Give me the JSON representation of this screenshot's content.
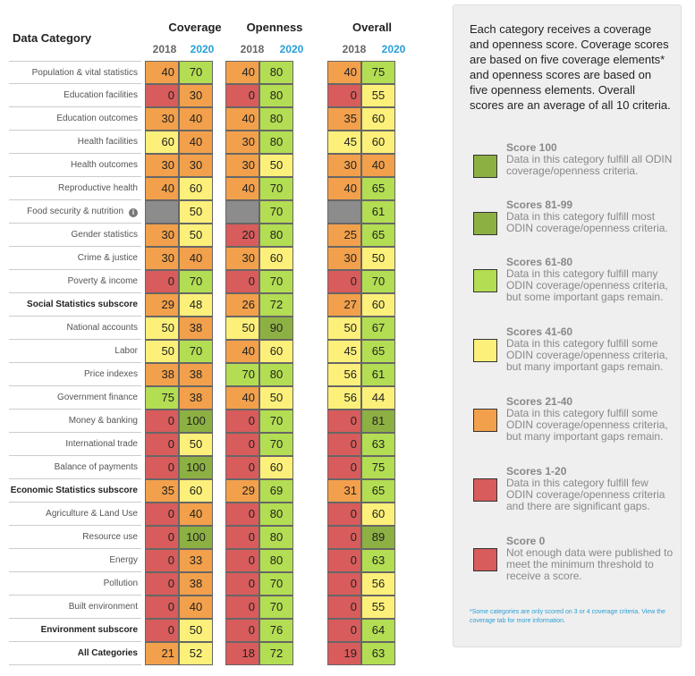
{
  "title": "Data Category",
  "groups": [
    {
      "title": "Coverage",
      "year_a": "2018",
      "year_b": "2020"
    },
    {
      "title": "Openness",
      "year_a": "2018",
      "year_b": "2020"
    },
    {
      "title": "Overall",
      "year_a": "2018",
      "year_b": "2020"
    }
  ],
  "colors": {
    "gray": "#8c8c8c",
    "red": "#d85c5c",
    "orange": "#f2a04b",
    "yellow": "#fdf07a",
    "lightgreen": "#b3dd52",
    "darkgreen": "#8db043"
  },
  "rows": [
    {
      "name": "Population & vital statistics",
      "bold": false,
      "values": [
        "40",
        "70",
        "40",
        "80",
        "40",
        "75"
      ],
      "colors": [
        "orange",
        "lightgreen",
        "orange",
        "lightgreen",
        "orange",
        "lightgreen"
      ]
    },
    {
      "name": "Education facilities",
      "bold": false,
      "values": [
        "0",
        "30",
        "0",
        "80",
        "0",
        "55"
      ],
      "colors": [
        "red",
        "orange",
        "red",
        "lightgreen",
        "red",
        "yellow"
      ]
    },
    {
      "name": "Education outcomes",
      "bold": false,
      "values": [
        "30",
        "40",
        "40",
        "80",
        "35",
        "60"
      ],
      "colors": [
        "orange",
        "orange",
        "orange",
        "lightgreen",
        "orange",
        "yellow"
      ]
    },
    {
      "name": "Health facilities",
      "bold": false,
      "values": [
        "60",
        "40",
        "30",
        "80",
        "45",
        "60"
      ],
      "colors": [
        "yellow",
        "orange",
        "orange",
        "lightgreen",
        "yellow",
        "yellow"
      ]
    },
    {
      "name": "Health outcomes",
      "bold": false,
      "values": [
        "30",
        "30",
        "30",
        "50",
        "30",
        "40"
      ],
      "colors": [
        "orange",
        "orange",
        "orange",
        "yellow",
        "orange",
        "orange"
      ]
    },
    {
      "name": "Reproductive health",
      "bold": false,
      "values": [
        "40",
        "60",
        "40",
        "70",
        "40",
        "65"
      ],
      "colors": [
        "orange",
        "yellow",
        "orange",
        "lightgreen",
        "orange",
        "lightgreen"
      ]
    },
    {
      "name": "Food security & nutrition",
      "bold": false,
      "info": "i",
      "values": [
        "",
        "50",
        "",
        "70",
        "",
        "61"
      ],
      "colors": [
        "gray",
        "yellow",
        "gray",
        "lightgreen",
        "gray",
        "lightgreen"
      ]
    },
    {
      "name": "Gender statistics",
      "bold": false,
      "values": [
        "30",
        "50",
        "20",
        "80",
        "25",
        "65"
      ],
      "colors": [
        "orange",
        "yellow",
        "red",
        "lightgreen",
        "orange",
        "lightgreen"
      ]
    },
    {
      "name": "Crime & justice",
      "bold": false,
      "values": [
        "30",
        "40",
        "30",
        "60",
        "30",
        "50"
      ],
      "colors": [
        "orange",
        "orange",
        "orange",
        "yellow",
        "orange",
        "yellow"
      ]
    },
    {
      "name": "Poverty & income",
      "bold": false,
      "values": [
        "0",
        "70",
        "0",
        "70",
        "0",
        "70"
      ],
      "colors": [
        "red",
        "lightgreen",
        "red",
        "lightgreen",
        "red",
        "lightgreen"
      ]
    },
    {
      "name": "Social Statistics subscore",
      "bold": true,
      "values": [
        "29",
        "48",
        "26",
        "72",
        "27",
        "60"
      ],
      "colors": [
        "orange",
        "yellow",
        "orange",
        "lightgreen",
        "orange",
        "yellow"
      ]
    },
    {
      "name": "National accounts",
      "bold": false,
      "values": [
        "50",
        "38",
        "50",
        "90",
        "50",
        "67"
      ],
      "colors": [
        "yellow",
        "orange",
        "yellow",
        "darkgreen",
        "yellow",
        "lightgreen"
      ]
    },
    {
      "name": "Labor",
      "bold": false,
      "values": [
        "50",
        "70",
        "40",
        "60",
        "45",
        "65"
      ],
      "colors": [
        "yellow",
        "lightgreen",
        "orange",
        "yellow",
        "yellow",
        "lightgreen"
      ]
    },
    {
      "name": "Price indexes",
      "bold": false,
      "values": [
        "38",
        "38",
        "70",
        "80",
        "56",
        "61"
      ],
      "colors": [
        "orange",
        "orange",
        "lightgreen",
        "lightgreen",
        "yellow",
        "lightgreen"
      ]
    },
    {
      "name": "Government finance",
      "bold": false,
      "values": [
        "75",
        "38",
        "40",
        "50",
        "56",
        "44"
      ],
      "colors": [
        "lightgreen",
        "orange",
        "orange",
        "yellow",
        "yellow",
        "yellow"
      ]
    },
    {
      "name": "Money & banking",
      "bold": false,
      "values": [
        "0",
        "100",
        "0",
        "70",
        "0",
        "81"
      ],
      "colors": [
        "red",
        "darkgreen",
        "red",
        "lightgreen",
        "red",
        "darkgreen"
      ]
    },
    {
      "name": "International trade",
      "bold": false,
      "values": [
        "0",
        "50",
        "0",
        "70",
        "0",
        "63"
      ],
      "colors": [
        "red",
        "yellow",
        "red",
        "lightgreen",
        "red",
        "lightgreen"
      ]
    },
    {
      "name": "Balance of payments",
      "bold": false,
      "values": [
        "0",
        "100",
        "0",
        "60",
        "0",
        "75"
      ],
      "colors": [
        "red",
        "darkgreen",
        "red",
        "yellow",
        "red",
        "lightgreen"
      ]
    },
    {
      "name": "Economic Statistics subscore",
      "bold": true,
      "values": [
        "35",
        "60",
        "29",
        "69",
        "31",
        "65"
      ],
      "colors": [
        "orange",
        "yellow",
        "orange",
        "lightgreen",
        "orange",
        "lightgreen"
      ]
    },
    {
      "name": "Agriculture & Land Use",
      "bold": false,
      "values": [
        "0",
        "40",
        "0",
        "80",
        "0",
        "60"
      ],
      "colors": [
        "red",
        "orange",
        "red",
        "lightgreen",
        "red",
        "yellow"
      ]
    },
    {
      "name": "Resource use",
      "bold": false,
      "values": [
        "0",
        "100",
        "0",
        "80",
        "0",
        "89"
      ],
      "colors": [
        "red",
        "darkgreen",
        "red",
        "lightgreen",
        "red",
        "darkgreen"
      ]
    },
    {
      "name": "Energy",
      "bold": false,
      "values": [
        "0",
        "33",
        "0",
        "80",
        "0",
        "63"
      ],
      "colors": [
        "red",
        "orange",
        "red",
        "lightgreen",
        "red",
        "lightgreen"
      ]
    },
    {
      "name": "Pollution",
      "bold": false,
      "values": [
        "0",
        "38",
        "0",
        "70",
        "0",
        "56"
      ],
      "colors": [
        "red",
        "orange",
        "red",
        "lightgreen",
        "red",
        "yellow"
      ]
    },
    {
      "name": "Built environment",
      "bold": false,
      "values": [
        "0",
        "40",
        "0",
        "70",
        "0",
        "55"
      ],
      "colors": [
        "red",
        "orange",
        "red",
        "lightgreen",
        "red",
        "yellow"
      ]
    },
    {
      "name": "Environment subscore",
      "bold": true,
      "values": [
        "0",
        "50",
        "0",
        "76",
        "0",
        "64"
      ],
      "colors": [
        "red",
        "yellow",
        "red",
        "lightgreen",
        "red",
        "lightgreen"
      ]
    },
    {
      "name": "All Categories",
      "bold": true,
      "values": [
        "21",
        "52",
        "18",
        "72",
        "19",
        "63"
      ],
      "colors": [
        "orange",
        "yellow",
        "red",
        "lightgreen",
        "red",
        "lightgreen"
      ]
    }
  ],
  "legend": {
    "intro": "Each category receives a coverage and openness score. Coverage scores are based on five coverage elements* and openness scores are based on five openness elements. Overall scores are an average of all 10 criteria.",
    "items": [
      {
        "title": "Score 100",
        "desc": "Data in this category fulfill all ODIN coverage/openness criteria.",
        "color": "darkgreen"
      },
      {
        "title": "Scores 81-99",
        "desc": "Data in this category fulfill most ODIN coverage/openness criteria.",
        "color": "darkgreen"
      },
      {
        "title": "Scores 61-80",
        "desc": "Data in this category fulfill many ODIN coverage/openness criteria, but some important gaps remain.",
        "color": "lightgreen"
      },
      {
        "title": "Scores 41-60",
        "desc": "Data in this category fulfill some ODIN coverage/openness criteria, but many important gaps remain.",
        "color": "yellow"
      },
      {
        "title": "Scores 21-40",
        "desc": "Data in this category fulfill some ODIN coverage/openness criteria, but many important gaps remain.",
        "color": "orange"
      },
      {
        "title": "Scores 1-20",
        "desc": "Data in this category fulfill few ODIN coverage/openness criteria and there are significant gaps.",
        "color": "red"
      },
      {
        "title": "Score 0",
        "desc": "Not enough data were published to meet the minimum threshold to receive a score.",
        "color": "red"
      }
    ],
    "footnote": "*Some categories are only scored on 3 or 4 coverage criteria. View the coverage tab for more information."
  }
}
